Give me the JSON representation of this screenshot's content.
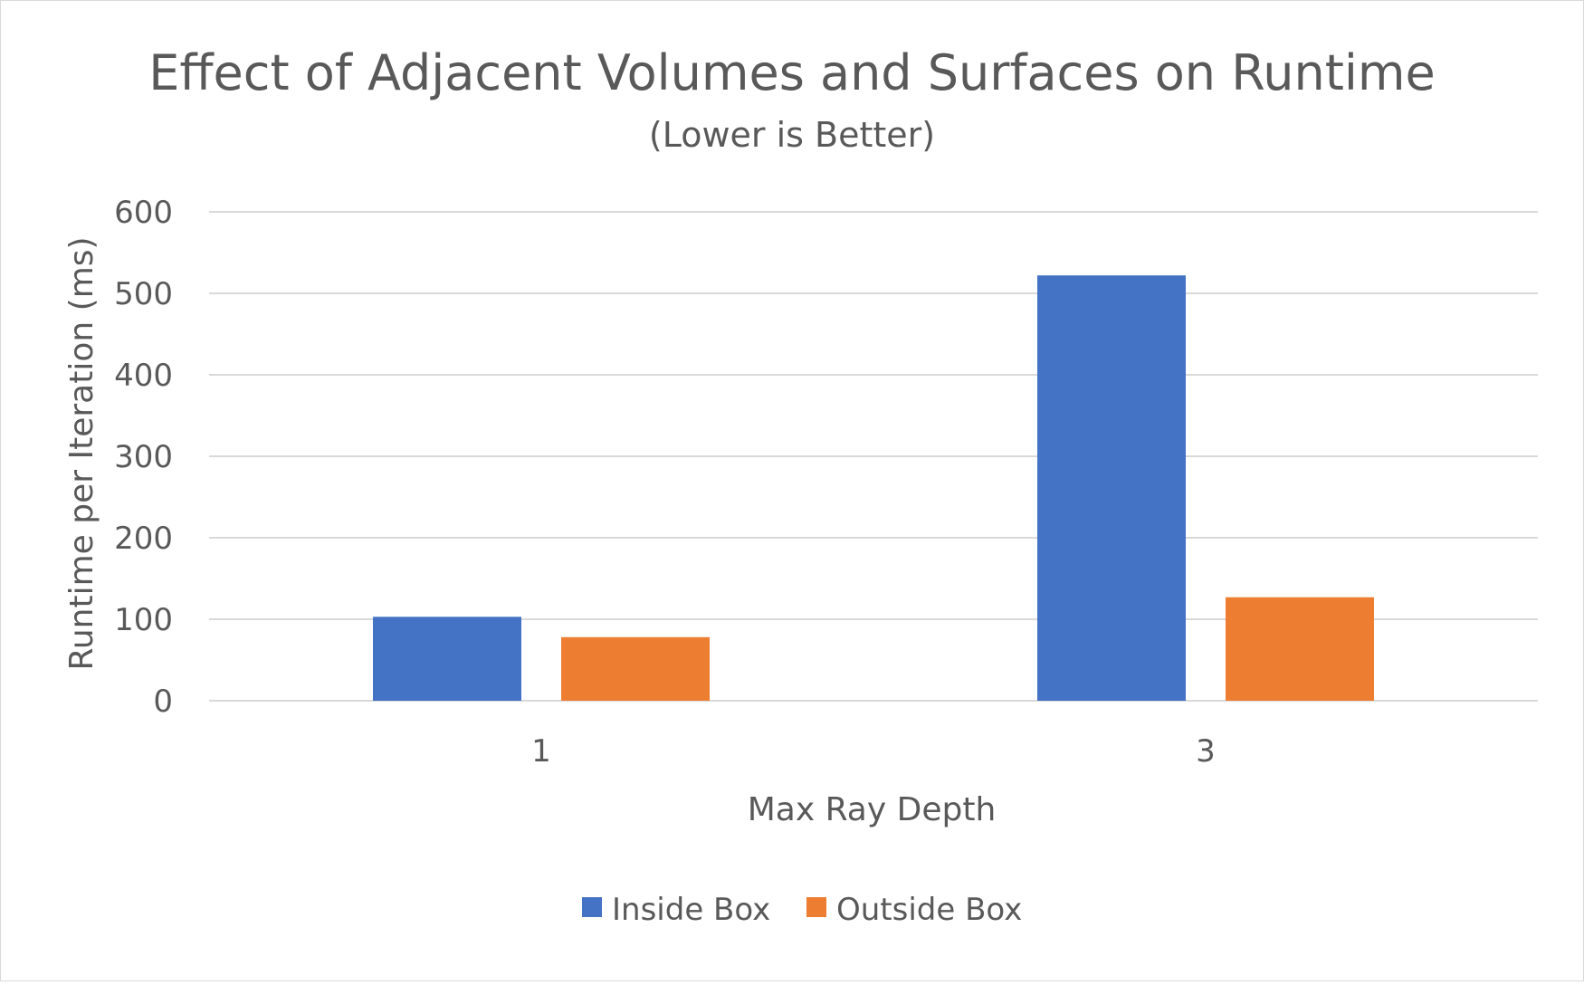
{
  "chart_data": {
    "type": "bar",
    "title": "Effect of Adjacent Volumes and Surfaces on Runtime",
    "subtitle": "(Lower is Better)",
    "xlabel": "Max Ray Depth",
    "ylabel": "Runtime per Iteration (ms)",
    "categories": [
      "1",
      "3"
    ],
    "series": [
      {
        "name": "Inside Box",
        "values": [
          103,
          522
        ],
        "color": "#4472c4"
      },
      {
        "name": "Outside Box",
        "values": [
          78,
          127
        ],
        "color": "#ed7d31"
      }
    ],
    "ylim": [
      0,
      600
    ],
    "yticks": [
      0,
      100,
      200,
      300,
      400,
      500,
      600
    ],
    "grid": true,
    "legend_position": "bottom"
  }
}
